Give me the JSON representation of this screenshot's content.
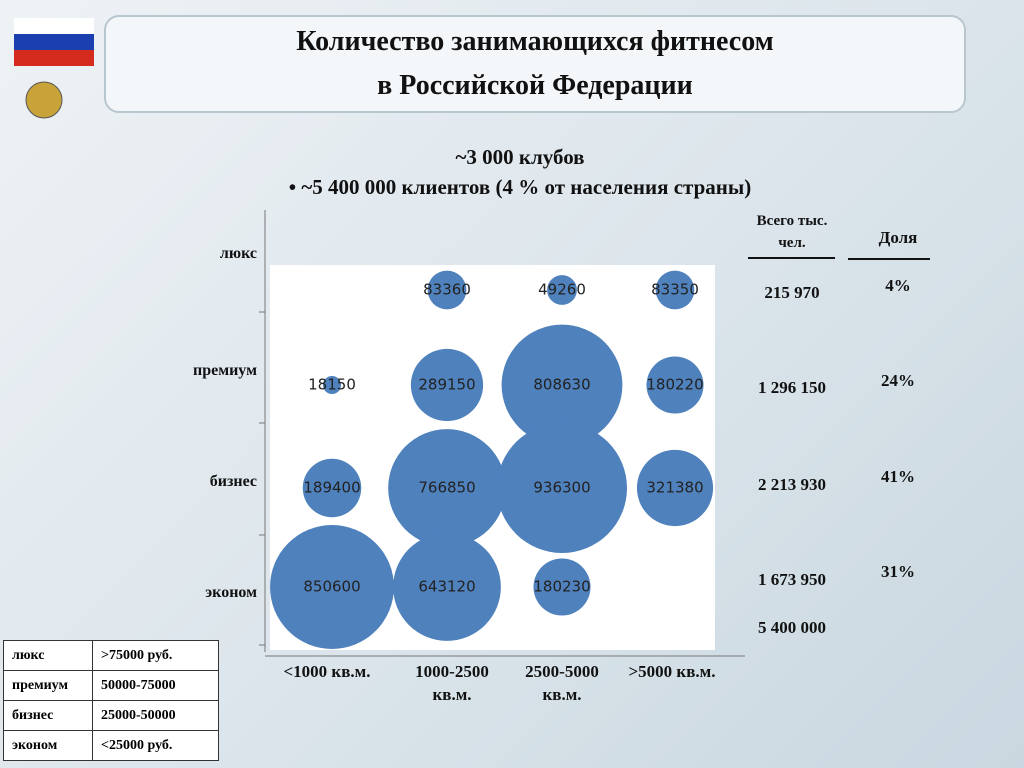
{
  "header": {
    "title_lines": [
      "Количество занимающихся фитнесом",
      "в Российской Федерации"
    ],
    "subtitle_lines": [
      "~3 000 клубов",
      "• ~5 400 000 клиентов (4 % от населения страны)"
    ]
  },
  "chart_data": {
    "type": "bubble",
    "x_categories": [
      "<1000 кв.м.",
      "1000-2500 кв.м.",
      "2500-5000 кв.м.",
      ">5000 кв.м."
    ],
    "y_categories": [
      "люкс",
      "премиум",
      "бизнес",
      "эконом"
    ],
    "values": [
      [
        null,
        83360,
        49260,
        83350
      ],
      [
        18150,
        289150,
        808630,
        180220
      ],
      [
        189400,
        766850,
        936300,
        321380
      ],
      [
        850600,
        643120,
        180230,
        null
      ]
    ],
    "color": "#4f81bd"
  },
  "totals": {
    "header": "Всего тыс. чел.",
    "share_header": "Доля",
    "rows": [
      "215 970",
      "1 296 150",
      "2 213 930",
      "1 673 950"
    ],
    "shares": [
      "4%",
      "24%",
      "41%",
      "31%"
    ],
    "grand_total": "5 400 000"
  },
  "legend_table": {
    "rows": [
      [
        "люкс",
        ">75000 руб."
      ],
      [
        "премиум",
        "50000-75000"
      ],
      [
        "бизнес",
        "25000-50000"
      ],
      [
        "эконом",
        "<25000 руб."
      ]
    ]
  }
}
